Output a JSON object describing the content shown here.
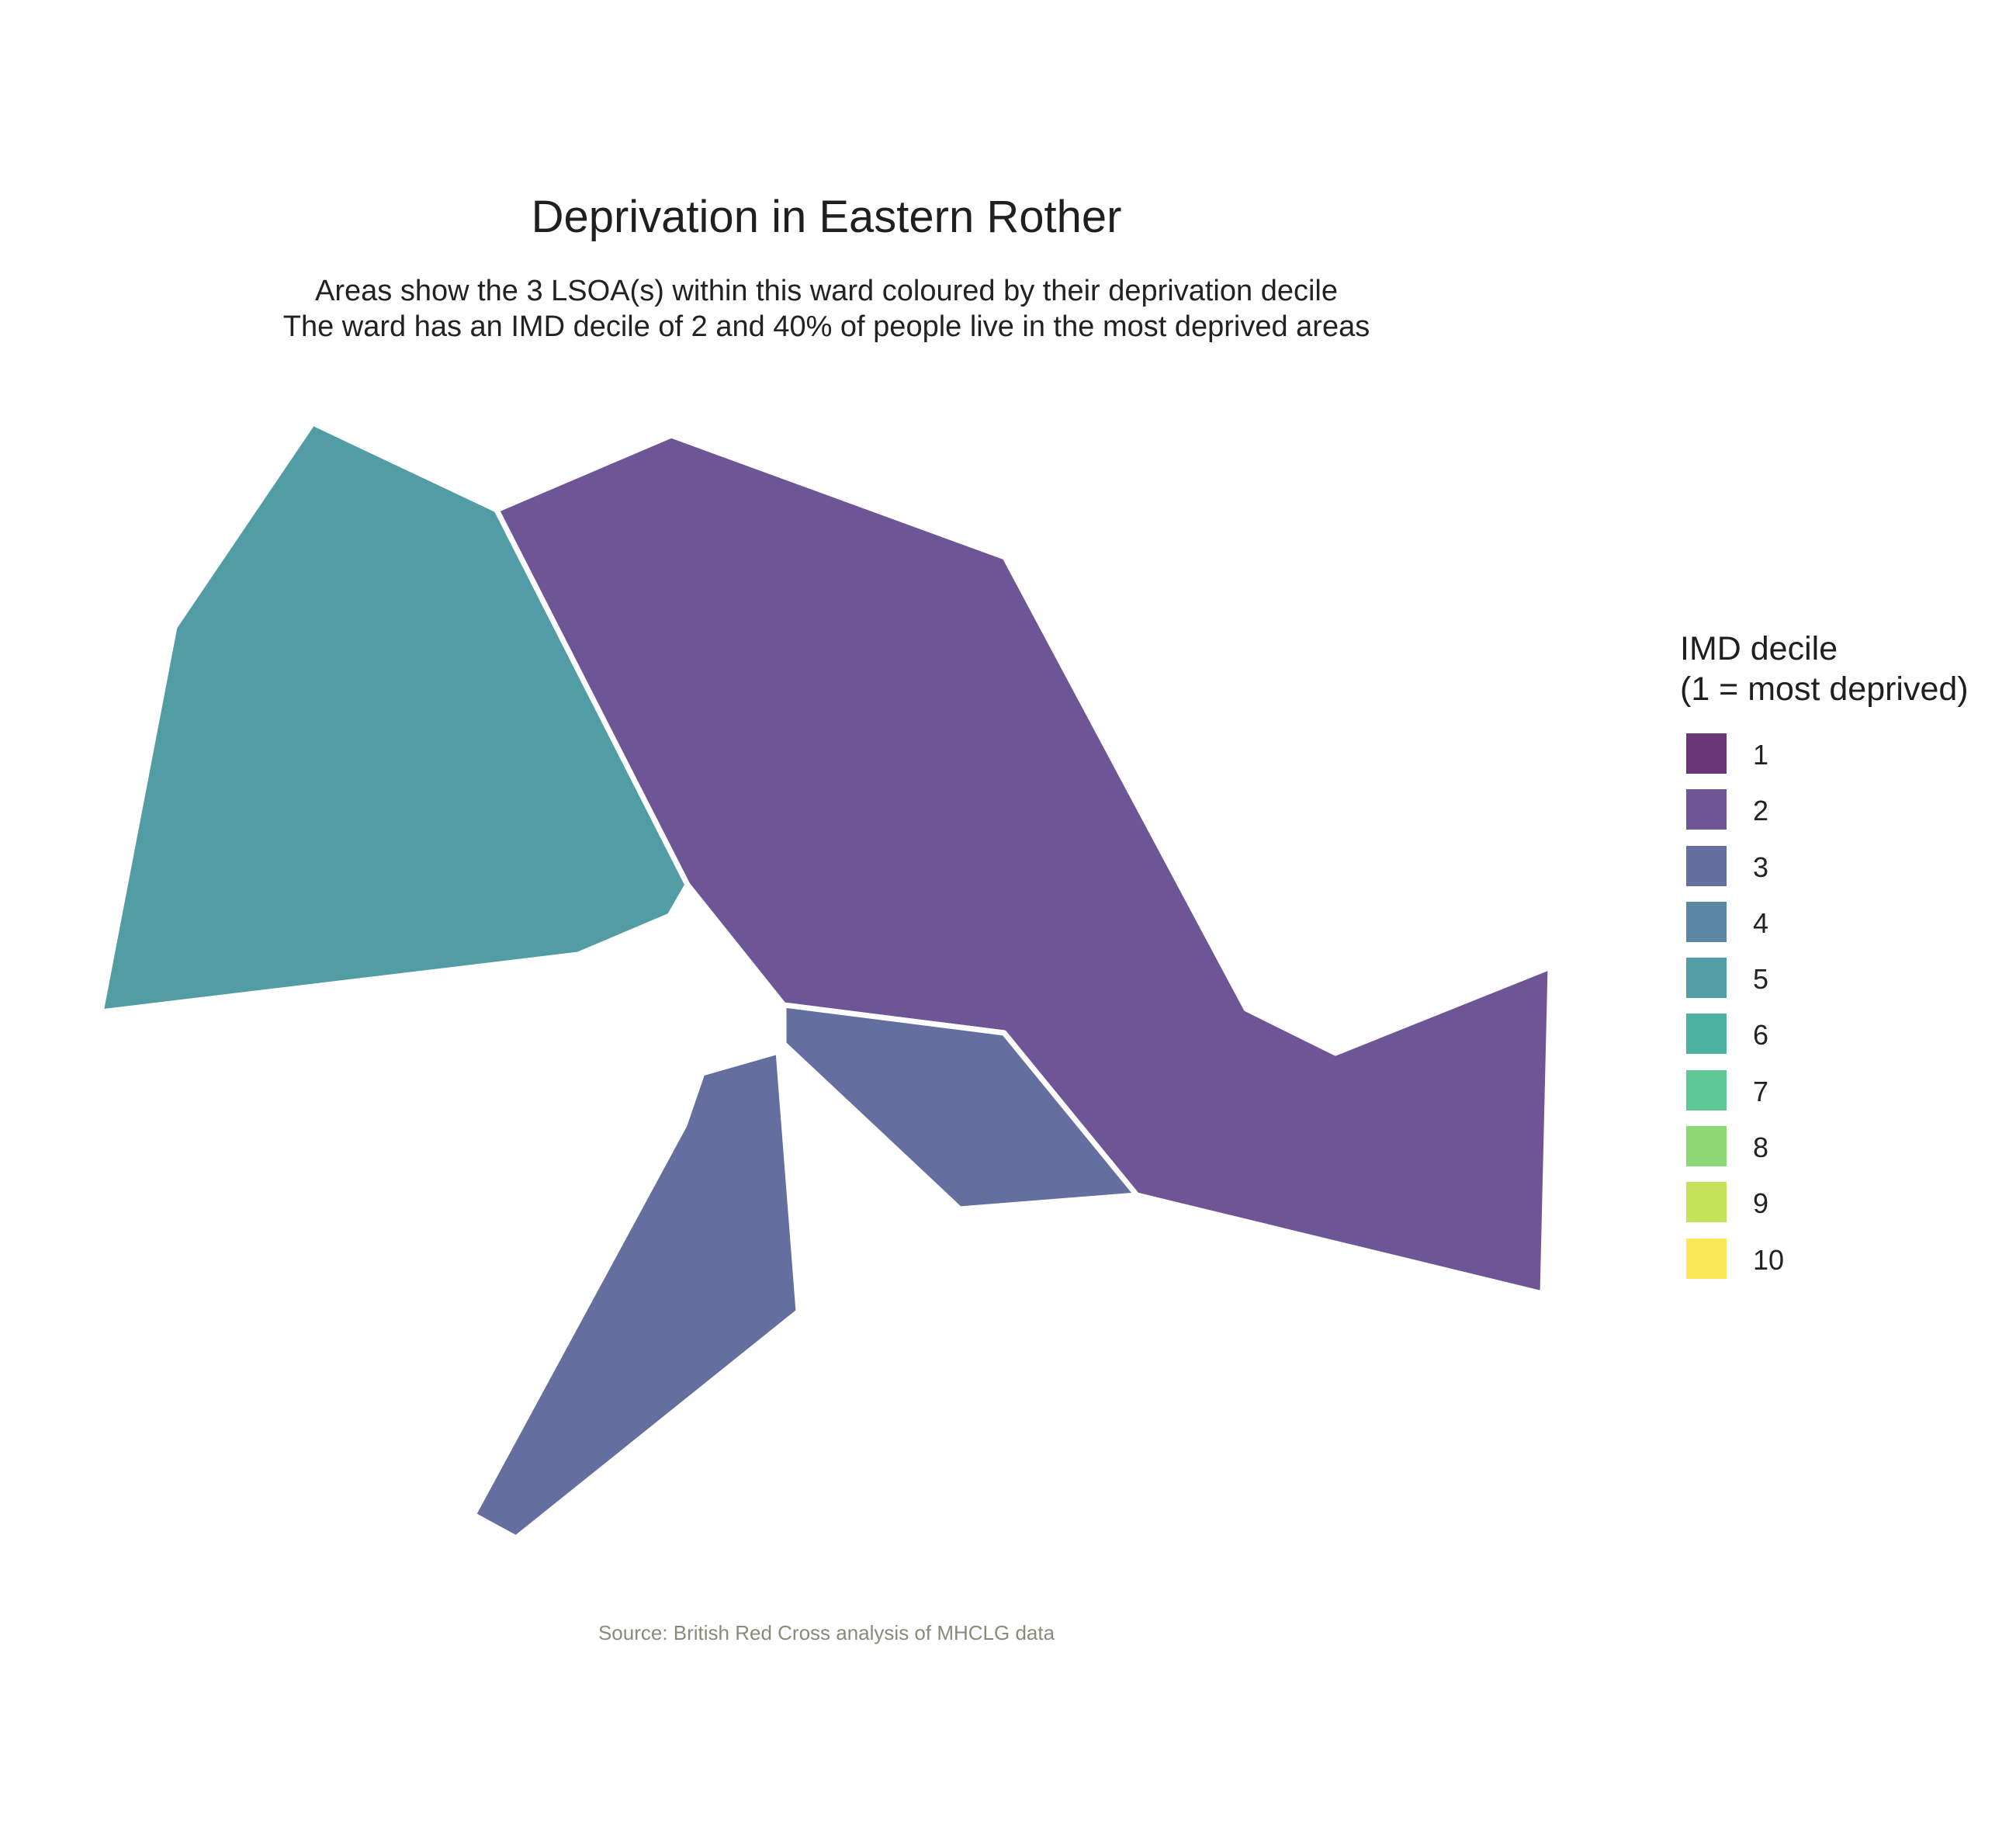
{
  "title": "Deprivation in Eastern Rother",
  "subtitle_lines": [
    "Areas show the 3 LSOA(s) within this ward coloured by their deprivation decile",
    "The ward has an IMD decile of 2 and 40% of people live in the most deprived areas"
  ],
  "caption": "Source: British Red Cross analysis of MHCLG data",
  "legend": {
    "title_lines": [
      "IMD decile",
      "(1 = most deprived)"
    ],
    "items": [
      {
        "label": "1",
        "color": "#6a3679"
      },
      {
        "label": "2",
        "color": "#6e5595"
      },
      {
        "label": "3",
        "color": "#656f9f"
      },
      {
        "label": "4",
        "color": "#5b87a5"
      },
      {
        "label": "5",
        "color": "#529ca5"
      },
      {
        "label": "6",
        "color": "#4fb1a1"
      },
      {
        "label": "7",
        "color": "#5ec795"
      },
      {
        "label": "8",
        "color": "#8cd874"
      },
      {
        "label": "9",
        "color": "#c6e15a"
      },
      {
        "label": "10",
        "color": "#fae85a"
      }
    ]
  },
  "map": {
    "areas": [
      {
        "decile": 5,
        "color": "#529ca5"
      },
      {
        "decile": 2,
        "color": "#6e5595"
      },
      {
        "decile": 3,
        "color": "#656f9f"
      }
    ]
  }
}
